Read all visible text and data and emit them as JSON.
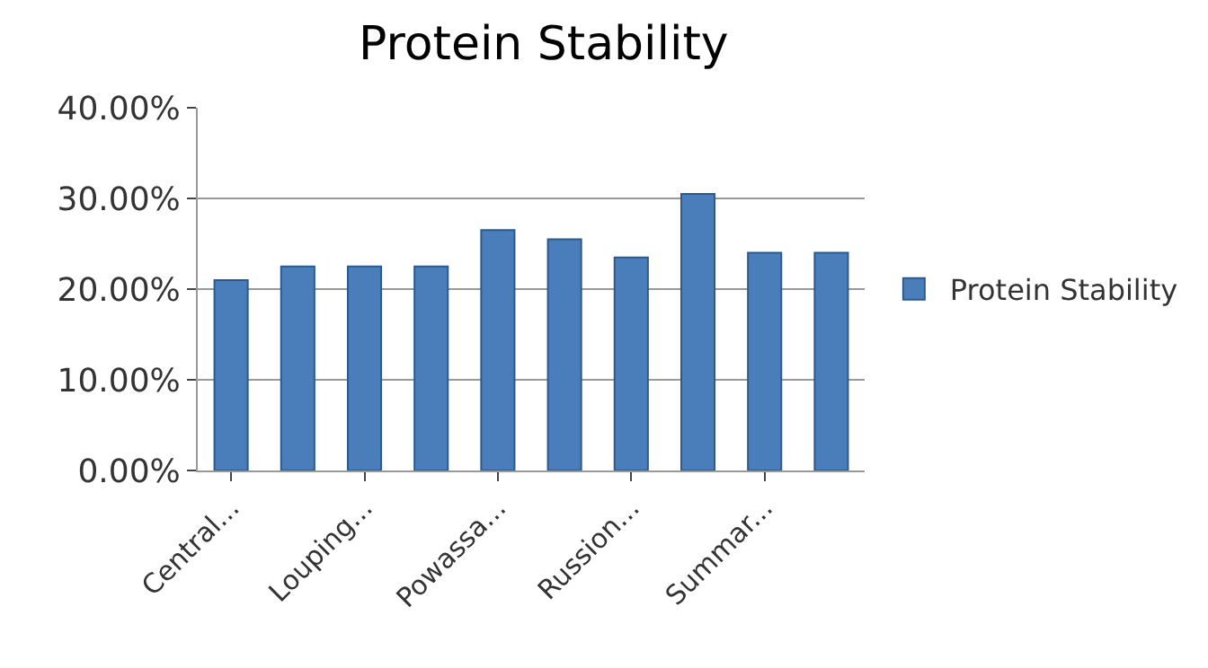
{
  "chart_data": {
    "type": "bar",
    "title": "Protein Stability",
    "categories": [
      "Central...",
      null,
      "Louping...",
      null,
      "Powassa...",
      null,
      "Russion...",
      null,
      "Summar...",
      null
    ],
    "series": [
      {
        "name": "Protein Stability",
        "color": "#4a7ebb",
        "values": [
          21,
          22.5,
          22.5,
          22.5,
          26.5,
          25.5,
          23.5,
          30.5,
          24,
          24
        ]
      }
    ],
    "ylim": [
      0,
      40
    ],
    "yticks": [
      {
        "value": 0,
        "label": "0.00%"
      },
      {
        "value": 10,
        "label": "10.00%"
      },
      {
        "value": 20,
        "label": "20.00%"
      },
      {
        "value": 30,
        "label": "30.00%"
      },
      {
        "value": 40,
        "label": "40.00%"
      }
    ],
    "grid": "y",
    "legend": "right"
  }
}
